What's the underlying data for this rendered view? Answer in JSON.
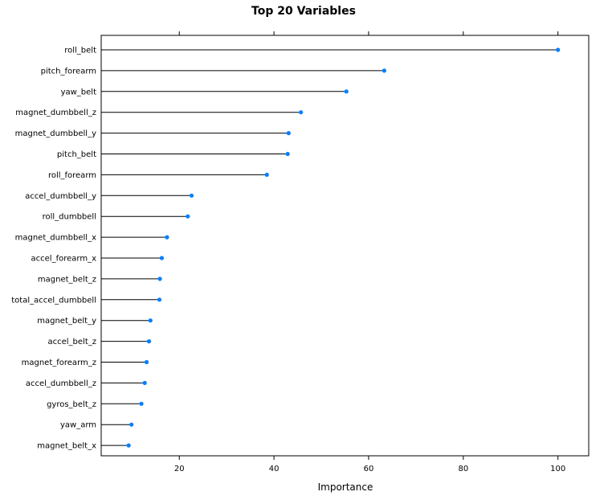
{
  "chart_data": {
    "type": "dot",
    "title": "Top 20 Variables",
    "xlabel": "Importance",
    "ylabel": "",
    "xlim": [
      3.5,
      106.5
    ],
    "xticks": [
      20,
      40,
      60,
      80,
      100
    ],
    "grid": false,
    "point_color": "#0080ff",
    "line_color": "#000000",
    "categories": [
      "roll_belt",
      "pitch_forearm",
      "yaw_belt",
      "magnet_dumbbell_z",
      "magnet_dumbbell_y",
      "pitch_belt",
      "roll_forearm",
      "accel_dumbbell_y",
      "roll_dumbbell",
      "magnet_dumbbell_x",
      "accel_forearm_x",
      "magnet_belt_z",
      "total_accel_dumbbell",
      "magnet_belt_y",
      "accel_belt_z",
      "magnet_forearm_z",
      "accel_dumbbell_z",
      "gyros_belt_z",
      "yaw_arm",
      "magnet_belt_x"
    ],
    "values": [
      100,
      63.3,
      55.3,
      45.7,
      43.1,
      42.9,
      38.5,
      22.6,
      21.8,
      17.4,
      16.3,
      15.9,
      15.8,
      13.9,
      13.6,
      13.1,
      12.7,
      12.0,
      9.9,
      9.3
    ]
  }
}
